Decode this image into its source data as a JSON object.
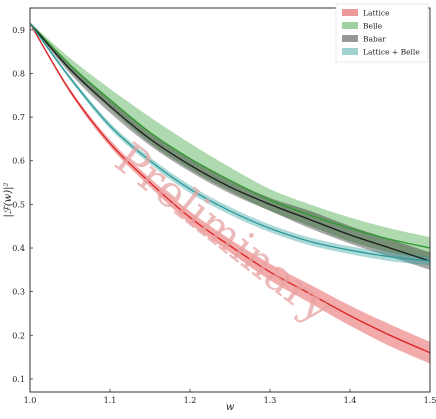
{
  "chart_data": {
    "type": "line",
    "title": "",
    "xlabel": "w",
    "ylabel": "|ℱ(w)|²",
    "xlim": [
      1.0,
      1.5
    ],
    "ylim": [
      0.07,
      0.95
    ],
    "grid": false,
    "legend_placement": "top-right",
    "xticks": [
      "1.0",
      "1.1",
      "1.2",
      "1.3",
      "1.4",
      "1.5"
    ],
    "yticks": [
      "0.1",
      "0.2",
      "0.3",
      "0.4",
      "0.5",
      "0.6",
      "0.7",
      "0.8",
      "0.9"
    ],
    "watermark": "Preliminary",
    "colors": {
      "lattice": "#dc2020",
      "belle": "#2e9a2e",
      "babar": "#1a1a1a",
      "lattice_belle": "#2a9a9a"
    },
    "series": [
      {
        "name": "Lattice",
        "x": [
          1.0,
          1.05,
          1.1,
          1.15,
          1.2,
          1.25,
          1.3,
          1.35,
          1.4,
          1.45,
          1.5
        ],
        "central": [
          0.915,
          0.76,
          0.64,
          0.55,
          0.47,
          0.405,
          0.345,
          0.295,
          0.245,
          0.2,
          0.16
        ],
        "lower": [
          0.913,
          0.755,
          0.632,
          0.54,
          0.456,
          0.39,
          0.326,
          0.274,
          0.222,
          0.175,
          0.135
        ],
        "upper": [
          0.917,
          0.765,
          0.648,
          0.56,
          0.484,
          0.42,
          0.364,
          0.316,
          0.268,
          0.225,
          0.185
        ]
      },
      {
        "name": "Belle",
        "x": [
          1.0,
          1.05,
          1.1,
          1.15,
          1.2,
          1.25,
          1.3,
          1.35,
          1.4,
          1.45,
          1.5
        ],
        "central": [
          0.915,
          0.82,
          0.74,
          0.665,
          0.605,
          0.555,
          0.51,
          0.475,
          0.445,
          0.42,
          0.4
        ],
        "lower": [
          0.913,
          0.805,
          0.72,
          0.64,
          0.58,
          0.53,
          0.485,
          0.45,
          0.415,
          0.39,
          0.375
        ],
        "upper": [
          0.917,
          0.835,
          0.765,
          0.7,
          0.64,
          0.585,
          0.535,
          0.5,
          0.47,
          0.445,
          0.425
        ]
      },
      {
        "name": "Babar",
        "x": [
          1.0,
          1.05,
          1.1,
          1.15,
          1.2,
          1.25,
          1.3,
          1.35,
          1.4,
          1.45,
          1.5
        ],
        "central": [
          0.915,
          0.81,
          0.725,
          0.65,
          0.59,
          0.54,
          0.5,
          0.465,
          0.43,
          0.4,
          0.37
        ],
        "lower": [
          0.913,
          0.8,
          0.71,
          0.635,
          0.575,
          0.525,
          0.485,
          0.445,
          0.41,
          0.38,
          0.35
        ],
        "upper": [
          0.917,
          0.82,
          0.74,
          0.665,
          0.605,
          0.555,
          0.515,
          0.485,
          0.45,
          0.42,
          0.39
        ]
      },
      {
        "name": "Lattice + Belle",
        "x": [
          1.0,
          1.05,
          1.1,
          1.15,
          1.2,
          1.25,
          1.3,
          1.35,
          1.4,
          1.45,
          1.5
        ],
        "central": [
          0.915,
          0.79,
          0.68,
          0.6,
          0.535,
          0.485,
          0.445,
          0.415,
          0.395,
          0.38,
          0.37
        ],
        "lower": [
          0.913,
          0.785,
          0.673,
          0.592,
          0.526,
          0.476,
          0.436,
          0.406,
          0.386,
          0.37,
          0.36
        ],
        "upper": [
          0.917,
          0.795,
          0.687,
          0.608,
          0.544,
          0.494,
          0.454,
          0.424,
          0.404,
          0.39,
          0.38
        ]
      }
    ]
  }
}
